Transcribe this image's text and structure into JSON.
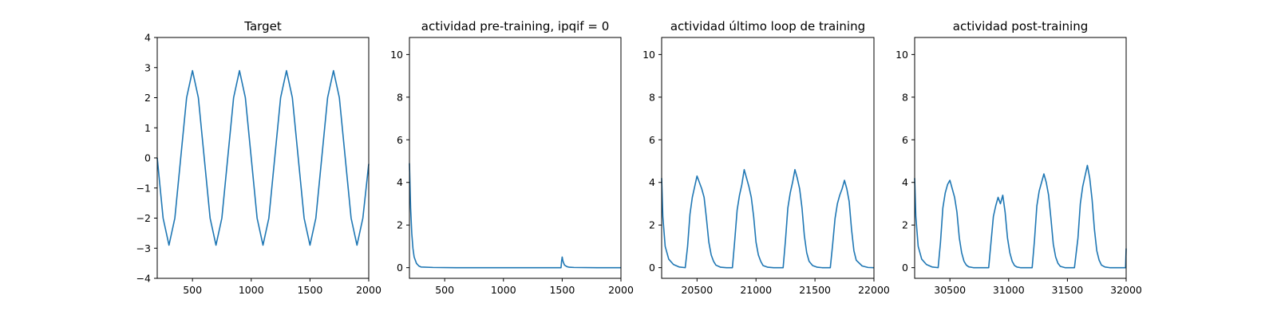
{
  "colors": {
    "line": "#1f77b4",
    "axes": "#000000",
    "background": "#ffffff"
  },
  "chart_data": [
    {
      "type": "line",
      "title": "Target",
      "xlim": [
        200,
        2000
      ],
      "ylim": [
        -4,
        4
      ],
      "xticks": [
        500,
        1000,
        1500,
        2000
      ],
      "yticks": [
        -4,
        -3,
        -2,
        -1,
        0,
        1,
        2,
        3,
        4
      ],
      "xticklabels": [
        "500",
        "1000",
        "1500",
        "2000"
      ],
      "yticklabels": [
        "−4",
        "−3",
        "−2",
        "−1",
        "0",
        "1",
        "2",
        "3",
        "4"
      ],
      "series": [
        {
          "x": [
            200,
            250,
            300,
            350,
            400,
            450,
            500,
            550,
            600,
            650,
            700,
            750,
            800,
            850,
            900,
            950,
            1000,
            1050,
            1100,
            1150,
            1200,
            1250,
            1300,
            1350,
            1400,
            1450,
            1500,
            1550,
            1600,
            1650,
            1700,
            1750,
            1800,
            1850,
            1900,
            1950,
            2000
          ],
          "y": [
            0.0,
            -2.0,
            -2.9,
            -2.0,
            0.0,
            2.0,
            2.9,
            2.0,
            0.0,
            -2.0,
            -2.9,
            -2.0,
            0.0,
            2.0,
            2.9,
            2.0,
            0.0,
            -2.0,
            -2.9,
            -2.0,
            0.0,
            2.0,
            2.9,
            2.0,
            0.0,
            -2.0,
            -2.9,
            -2.0,
            0.0,
            2.0,
            2.9,
            2.0,
            0.0,
            -2.0,
            -2.9,
            -2.0,
            -0.2
          ]
        }
      ]
    },
    {
      "type": "line",
      "title": "actividad pre-training, ipqif = 0",
      "xlim": [
        200,
        2000
      ],
      "ylim": [
        -0.5,
        10.8
      ],
      "xticks": [
        500,
        1000,
        1500,
        2000
      ],
      "yticks": [
        0,
        2,
        4,
        6,
        8,
        10
      ],
      "xticklabels": [
        "500",
        "1000",
        "1500",
        "2000"
      ],
      "yticklabels": [
        "0",
        "2",
        "4",
        "6",
        "8",
        "10"
      ],
      "series": [
        {
          "x": [
            200,
            210,
            220,
            230,
            240,
            260,
            280,
            300,
            400,
            600,
            800,
            1000,
            1200,
            1400,
            1480,
            1490,
            1495,
            1500,
            1505,
            1510,
            1520,
            1540,
            1560,
            1600,
            1800,
            2000
          ],
          "y": [
            4.9,
            2.8,
            1.6,
            0.9,
            0.5,
            0.2,
            0.08,
            0.03,
            0.01,
            0.0,
            0.0,
            0.0,
            0.0,
            0.0,
            0.0,
            0.0,
            0.3,
            0.5,
            0.35,
            0.25,
            0.12,
            0.05,
            0.02,
            0.01,
            0.0,
            0.0
          ]
        }
      ]
    },
    {
      "type": "line",
      "title": "actividad último loop de training",
      "xlim": [
        20200,
        22000
      ],
      "ylim": [
        -0.5,
        10.8
      ],
      "xticks": [
        20500,
        21000,
        21500,
        22000
      ],
      "yticks": [
        0,
        2,
        4,
        6,
        8,
        10
      ],
      "xticklabels": [
        "20500",
        "21000",
        "21500",
        "22000"
      ],
      "yticklabels": [
        "0",
        "2",
        "4",
        "6",
        "8",
        "10"
      ],
      "series": [
        {
          "x": [
            20200,
            20210,
            20230,
            20260,
            20300,
            20350,
            20400,
            20420,
            20440,
            20460,
            20480,
            20500,
            20520,
            20540,
            20560,
            20580,
            20600,
            20620,
            20640,
            20660,
            20700,
            20750,
            20800,
            20820,
            20840,
            20860,
            20880,
            20900,
            20920,
            20940,
            20960,
            20980,
            21000,
            21020,
            21040,
            21060,
            21100,
            21150,
            21200,
            21230,
            21250,
            21270,
            21290,
            21310,
            21330,
            21350,
            21370,
            21390,
            21410,
            21430,
            21450,
            21480,
            21520,
            21560,
            21600,
            21630,
            21650,
            21670,
            21690,
            21710,
            21730,
            21750,
            21770,
            21790,
            21810,
            21830,
            21850,
            21900,
            21950,
            22000
          ],
          "y": [
            4.2,
            2.4,
            1.0,
            0.4,
            0.15,
            0.03,
            0.0,
            1.0,
            2.5,
            3.3,
            3.8,
            4.3,
            4.0,
            3.7,
            3.3,
            2.3,
            1.2,
            0.6,
            0.3,
            0.12,
            0.02,
            0.0,
            0.0,
            1.3,
            2.7,
            3.4,
            3.9,
            4.6,
            4.2,
            3.8,
            3.3,
            2.4,
            1.2,
            0.6,
            0.3,
            0.1,
            0.02,
            0.0,
            0.0,
            0.0,
            1.3,
            2.8,
            3.5,
            4.0,
            4.6,
            4.2,
            3.7,
            2.8,
            1.5,
            0.7,
            0.3,
            0.1,
            0.02,
            0.0,
            0.0,
            0.0,
            1.1,
            2.3,
            3.0,
            3.4,
            3.7,
            4.1,
            3.7,
            3.1,
            1.8,
            0.8,
            0.35,
            0.08,
            0.01,
            0.0
          ]
        }
      ]
    },
    {
      "type": "line",
      "title": "actividad post-training",
      "xlim": [
        30200,
        32000
      ],
      "ylim": [
        -0.5,
        10.8
      ],
      "xticks": [
        30500,
        31000,
        31500,
        32000
      ],
      "yticks": [
        0,
        2,
        4,
        6,
        8,
        10
      ],
      "xticklabels": [
        "30500",
        "31000",
        "31500",
        "32000"
      ],
      "yticklabels": [
        "0",
        "2",
        "4",
        "6",
        "8",
        "10"
      ],
      "series": [
        {
          "x": [
            30200,
            30210,
            30230,
            30260,
            30300,
            30350,
            30400,
            30420,
            30440,
            30460,
            30480,
            30500,
            30520,
            30540,
            30560,
            30580,
            30600,
            30620,
            30640,
            30660,
            30700,
            30750,
            30800,
            30830,
            30850,
            30870,
            30890,
            30910,
            30930,
            30950,
            30970,
            30990,
            31010,
            31030,
            31050,
            31070,
            31100,
            31150,
            31200,
            31220,
            31240,
            31260,
            31280,
            31300,
            31320,
            31340,
            31360,
            31380,
            31400,
            31420,
            31440,
            31480,
            31520,
            31560,
            31590,
            31610,
            31630,
            31650,
            31670,
            31690,
            31710,
            31730,
            31750,
            31770,
            31790,
            31820,
            31860,
            31900,
            31950,
            31995,
            32000
          ],
          "y": [
            4.2,
            2.4,
            1.0,
            0.4,
            0.15,
            0.03,
            0.0,
            1.2,
            2.8,
            3.5,
            3.9,
            4.1,
            3.7,
            3.3,
            2.6,
            1.4,
            0.7,
            0.3,
            0.12,
            0.04,
            0.0,
            0.0,
            0.0,
            0.0,
            1.2,
            2.4,
            2.9,
            3.3,
            3.0,
            3.4,
            2.6,
            1.4,
            0.7,
            0.3,
            0.1,
            0.03,
            0.0,
            0.0,
            0.0,
            1.3,
            2.9,
            3.6,
            4.0,
            4.4,
            4.0,
            3.4,
            2.3,
            1.1,
            0.5,
            0.2,
            0.06,
            0.0,
            0.0,
            0.0,
            1.4,
            3.0,
            3.8,
            4.3,
            4.8,
            4.2,
            3.2,
            1.8,
            0.8,
            0.35,
            0.12,
            0.03,
            0.0,
            0.0,
            0.0,
            0.0,
            0.9
          ]
        }
      ]
    }
  ]
}
